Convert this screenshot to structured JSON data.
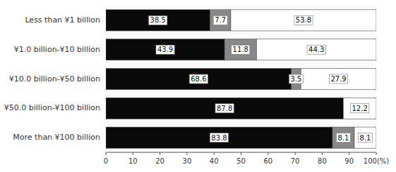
{
  "chart_data": {
    "type": "bar",
    "orientation": "horizontal",
    "stacked": true,
    "data_labels": true,
    "grid": false,
    "categories": [
      "Less than ¥1 billion",
      "¥1.0 billion-¥10 billion",
      "¥10.0 billion-¥50 billion",
      "¥50.0 billion-¥100 billion",
      "More than ¥100 billion"
    ],
    "series": [
      {
        "color": "#0a0a0a",
        "values": [
          38.5,
          43.9,
          68.6,
          87.8,
          83.8
        ]
      },
      {
        "color": "#888888",
        "values": [
          7.7,
          11.8,
          3.5,
          0.0,
          8.1
        ]
      },
      {
        "color": "#ffffff",
        "values": [
          53.8,
          44.3,
          27.9,
          12.2,
          8.1
        ]
      }
    ],
    "xlim": [
      0,
      100
    ],
    "xticks": [
      0,
      10,
      20,
      30,
      40,
      50,
      60,
      70,
      80,
      90,
      {
        "value": 100,
        "label": "100(%)"
      }
    ]
  }
}
